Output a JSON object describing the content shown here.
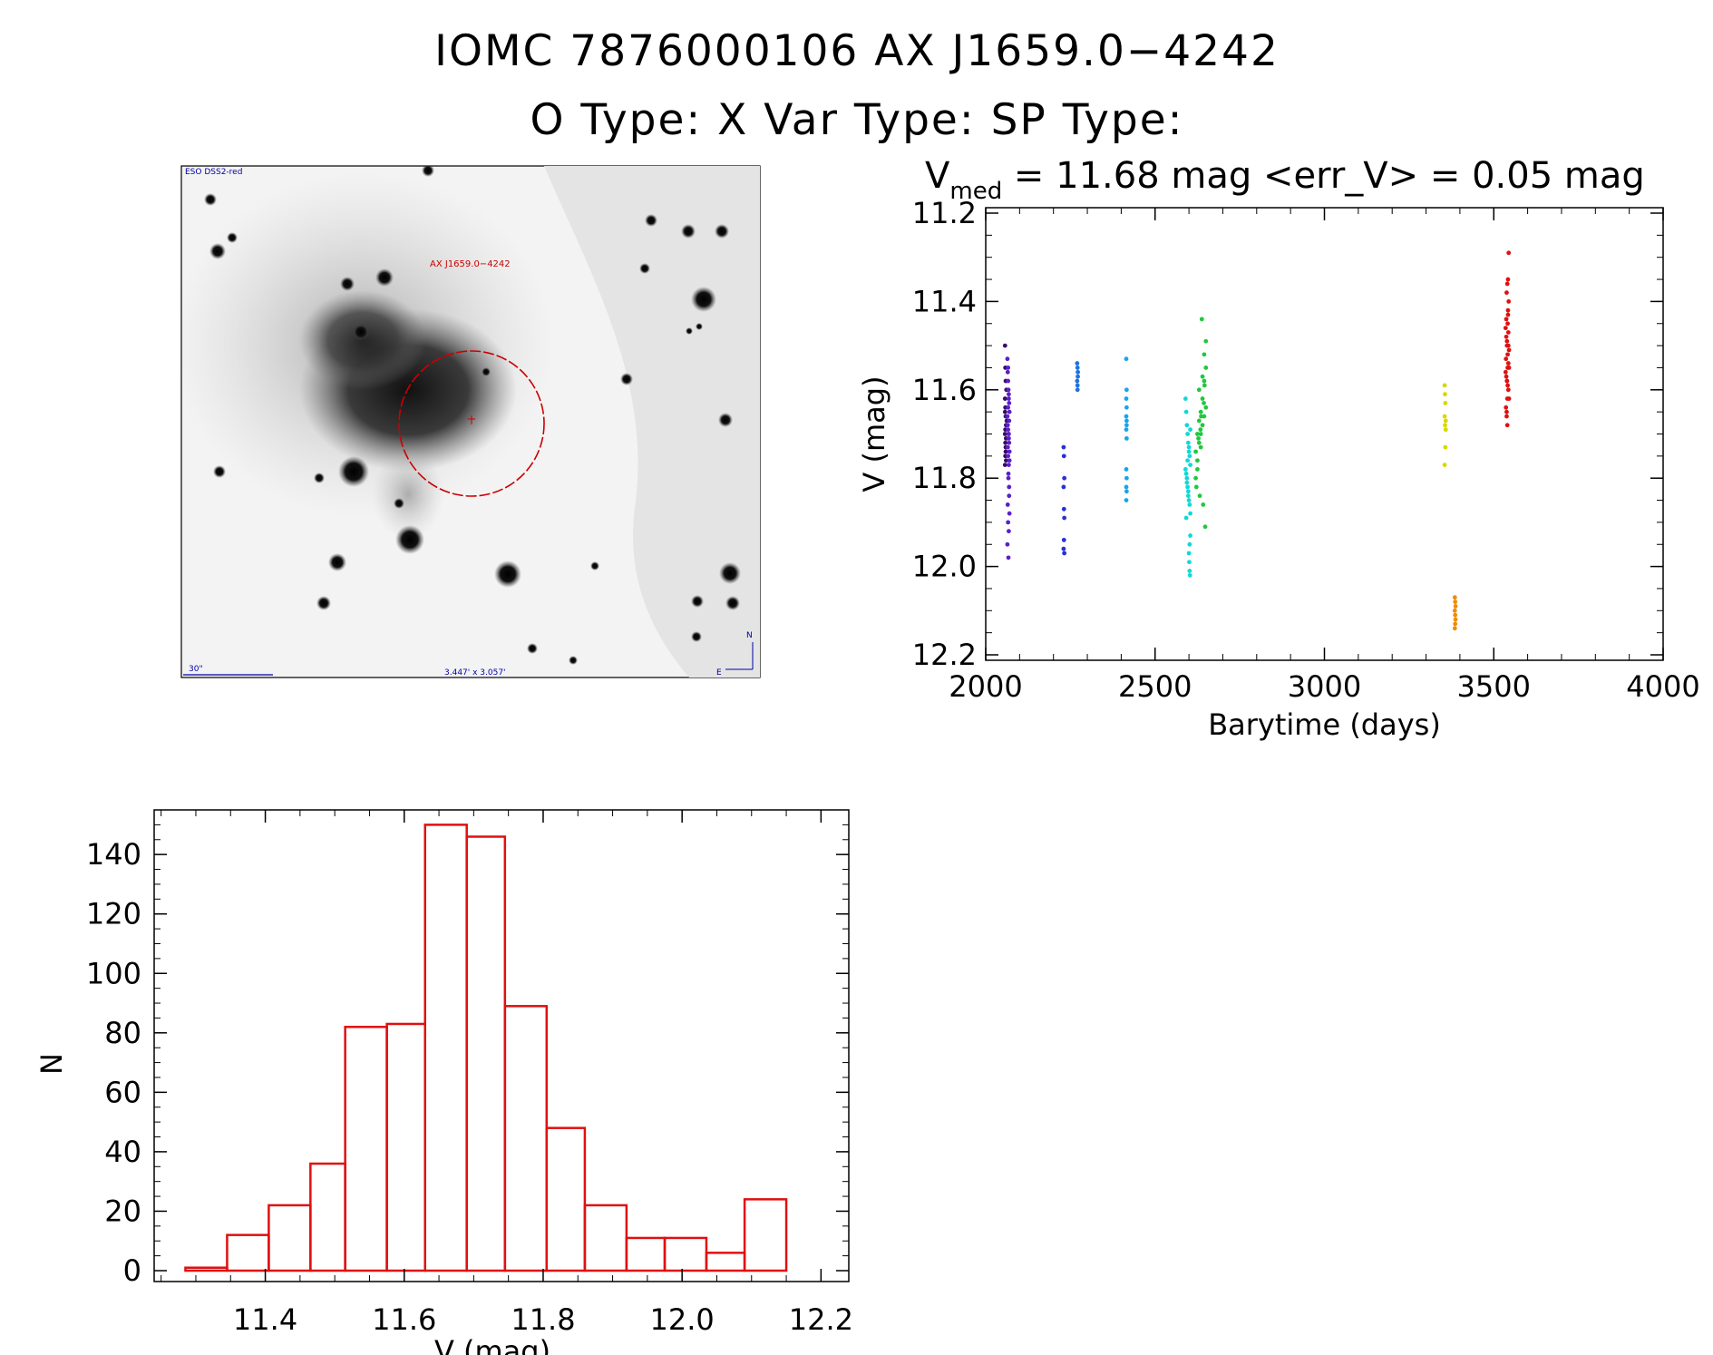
{
  "header": {
    "title": "IOMC 7876000106    AX J1659.0−4242",
    "subtitle": "O Type: X   Var Type:    SP Type:"
  },
  "finder": {
    "survey_label": "ESO DSS2-red",
    "target_label": "AX J1659.0−4242",
    "scale_label": "30\"",
    "fov_label": "3.447' x 3.057'",
    "north_label": "N",
    "east_label": "E",
    "colors": {
      "ring": "#cc0000",
      "annotation": "#0000aa"
    }
  },
  "chart_data": [
    {
      "id": "light-curve",
      "type": "scatter",
      "title": "V",
      "title_sub": "med",
      "title_rest": " = 11.68 mag <err_V> = 0.05 mag",
      "xlabel": "Barytime (days)",
      "ylabel": "V (mag)",
      "xlim": [
        2000,
        4000
      ],
      "ylim": [
        12.2,
        11.2
      ],
      "y_reversed": true,
      "xticks": [
        "2000",
        "2500",
        "3000",
        "3500",
        "4000"
      ],
      "yticks": [
        "11.2",
        "11.4",
        "11.6",
        "11.8",
        "12.0",
        "12.2"
      ],
      "grid": false,
      "series": [
        {
          "color": "#3a0a6a",
          "x": [
            2057,
            2058,
            2059,
            2057,
            2058,
            2059,
            2060,
            2057,
            2058,
            2059,
            2058,
            2060,
            2057,
            2059,
            2058,
            2060,
            2061,
            2062,
            2057
          ],
          "y": [
            11.5,
            11.55,
            11.58,
            11.62,
            11.64,
            11.66,
            11.68,
            11.7,
            11.72,
            11.74,
            11.75,
            11.76,
            11.77,
            11.73,
            11.69,
            11.71,
            11.6,
            11.67,
            11.65
          ]
        },
        {
          "color": "#5a20c8",
          "x": [
            2064,
            2065,
            2066,
            2067,
            2068,
            2069,
            2070,
            2064,
            2065,
            2066,
            2067,
            2068,
            2069,
            2070,
            2066,
            2068,
            2067,
            2069,
            2065,
            2070,
            2066,
            2068,
            2064,
            2067,
            2069,
            2066,
            2068,
            2065,
            2070,
            2067,
            2069,
            2066,
            2068
          ],
          "y": [
            11.53,
            11.56,
            11.58,
            11.6,
            11.62,
            11.63,
            11.65,
            11.66,
            11.68,
            11.69,
            11.7,
            11.71,
            11.72,
            11.74,
            11.75,
            11.77,
            11.79,
            11.82,
            11.86,
            11.88,
            11.9,
            11.92,
            11.95,
            11.98,
            11.67,
            11.64,
            11.61,
            11.73,
            11.76,
            11.8,
            11.84,
            11.55,
            11.7
          ]
        },
        {
          "color": "#2830d8",
          "x": [
            2230,
            2231,
            2232,
            2230,
            2231,
            2232,
            2231,
            2230,
            2232
          ],
          "y": [
            11.73,
            11.75,
            11.8,
            11.82,
            11.87,
            11.89,
            11.94,
            11.96,
            11.97
          ]
        },
        {
          "color": "#1e72e0",
          "x": [
            2270,
            2271,
            2272,
            2270,
            2271,
            2272,
            2271
          ],
          "y": [
            11.54,
            11.55,
            11.57,
            11.58,
            11.59,
            11.56,
            11.6
          ]
        },
        {
          "color": "#1aa4e8",
          "x": [
            2415,
            2416,
            2415,
            2416,
            2415,
            2416,
            2415,
            2416,
            2415,
            2416,
            2415,
            2416,
            2415,
            2416
          ],
          "y": [
            11.53,
            11.6,
            11.62,
            11.64,
            11.66,
            11.68,
            11.69,
            11.71,
            11.78,
            11.8,
            11.82,
            11.83,
            11.85,
            11.67
          ]
        },
        {
          "color": "#10d8d8",
          "x": [
            2590,
            2592,
            2594,
            2596,
            2598,
            2600,
            2602,
            2604,
            2590,
            2592,
            2594,
            2596,
            2598,
            2600,
            2602,
            2604,
            2592,
            2596,
            2600,
            2604,
            2594,
            2598,
            2602,
            2600,
            2601,
            2602,
            2603,
            2604
          ],
          "y": [
            11.62,
            11.65,
            11.68,
            11.7,
            11.72,
            11.74,
            11.75,
            11.77,
            11.78,
            11.79,
            11.8,
            11.82,
            11.83,
            11.85,
            11.86,
            11.88,
            11.89,
            11.76,
            11.73,
            11.69,
            11.81,
            11.84,
            11.95,
            11.97,
            11.99,
            12.01,
            12.02,
            11.93
          ]
        },
        {
          "color": "#20c840",
          "x": [
            2620,
            2625,
            2630,
            2635,
            2640,
            2645,
            2650,
            2620,
            2625,
            2630,
            2635,
            2640,
            2645,
            2650,
            2625,
            2635,
            2645,
            2630,
            2640,
            2650,
            2622,
            2632,
            2642,
            2648,
            2638,
            2628,
            2644,
            2646,
            2634,
            2636
          ],
          "y": [
            11.8,
            11.76,
            11.72,
            11.7,
            11.68,
            11.66,
            11.64,
            11.74,
            11.7,
            11.67,
            11.65,
            11.62,
            11.58,
            11.55,
            11.78,
            11.73,
            11.52,
            11.6,
            11.57,
            11.49,
            11.82,
            11.84,
            11.86,
            11.91,
            11.44,
            11.71,
            11.63,
            11.59,
            11.69,
            11.66
          ]
        },
        {
          "color": "#d8d800",
          "x": [
            3355,
            3356,
            3357,
            3355,
            3358,
            3356,
            3357,
            3358,
            3355
          ],
          "y": [
            11.59,
            11.61,
            11.63,
            11.66,
            11.67,
            11.68,
            11.73,
            11.69,
            11.77
          ]
        },
        {
          "color": "#f08c00",
          "x": [
            3385,
            3386,
            3387,
            3385,
            3386,
            3387,
            3386,
            3385
          ],
          "y": [
            12.07,
            12.08,
            12.09,
            12.1,
            12.11,
            12.12,
            12.13,
            12.14
          ]
        },
        {
          "color": "#e01010",
          "x": [
            3535,
            3537,
            3539,
            3541,
            3543,
            3545,
            3535,
            3537,
            3539,
            3541,
            3543,
            3545,
            3536,
            3538,
            3540,
            3542,
            3544,
            3538,
            3540,
            3542,
            3537,
            3541,
            3543,
            3539,
            3545,
            3536,
            3544,
            3540,
            3538,
            3542,
            3541,
            3539,
            3543
          ],
          "y": [
            11.46,
            11.48,
            11.5,
            11.52,
            11.54,
            11.55,
            11.56,
            11.57,
            11.58,
            11.59,
            11.6,
            11.62,
            11.64,
            11.66,
            11.68,
            11.42,
            11.4,
            11.38,
            11.36,
            11.35,
            11.44,
            11.45,
            11.47,
            11.49,
            11.51,
            11.53,
            11.29,
            11.62,
            11.65,
            11.43,
            11.55,
            11.58,
            11.5
          ]
        }
      ]
    },
    {
      "id": "histogram",
      "type": "bar",
      "xlabel": "V (mag)",
      "ylabel": "N",
      "xlim": [
        11.24,
        12.24
      ],
      "ylim": [
        0,
        155
      ],
      "xticks": [
        "11.4",
        "11.6",
        "11.8",
        "12.0",
        "12.2"
      ],
      "yticks": [
        "0",
        "20",
        "40",
        "60",
        "80",
        "100",
        "120",
        "140"
      ],
      "bin_edges": [
        11.285,
        11.345,
        11.405,
        11.465,
        11.515,
        11.575,
        11.63,
        11.69,
        11.745,
        11.805,
        11.86,
        11.92,
        11.975,
        12.035,
        12.09,
        12.15
      ],
      "values": [
        1,
        12,
        22,
        36,
        82,
        83,
        150,
        146,
        89,
        48,
        22,
        11,
        11,
        6,
        24
      ],
      "grid": false,
      "color": "#e01010"
    }
  ]
}
